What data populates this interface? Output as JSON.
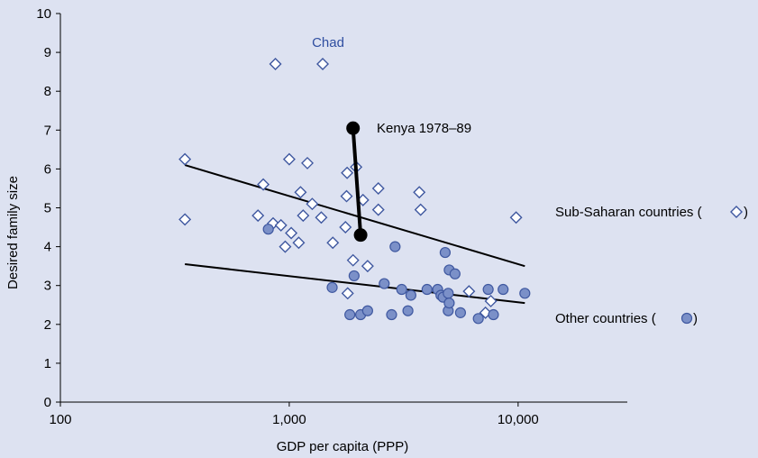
{
  "chart_data": {
    "type": "scatter",
    "xscale": "log",
    "xlim": [
      100,
      30000
    ],
    "ylim": [
      0,
      10
    ],
    "xlabel": "GDP per capita (PPP)",
    "ylabel": "Desired family size",
    "xticks": [
      {
        "value": 100,
        "label": "100"
      },
      {
        "value": 1000,
        "label": "1,000"
      },
      {
        "value": 10000,
        "label": "10,000"
      }
    ],
    "yticks": [
      0,
      1,
      2,
      3,
      4,
      5,
      6,
      7,
      8,
      9,
      10
    ],
    "grid": false,
    "series": [
      {
        "name": "Sub-Saharan countries",
        "marker": "diamond",
        "points": [
          [
            350,
            6.25
          ],
          [
            350,
            4.7
          ],
          [
            730,
            4.8
          ],
          [
            770,
            5.6
          ],
          [
            850,
            4.6
          ],
          [
            870,
            8.7
          ],
          [
            920,
            4.55
          ],
          [
            960,
            4.0
          ],
          [
            1000,
            6.25
          ],
          [
            1020,
            4.35
          ],
          [
            1100,
            4.1
          ],
          [
            1120,
            5.4
          ],
          [
            1150,
            4.8
          ],
          [
            1200,
            6.15
          ],
          [
            1260,
            5.1
          ],
          [
            1380,
            4.75
          ],
          [
            1400,
            8.7
          ],
          [
            1550,
            4.1
          ],
          [
            1760,
            4.5
          ],
          [
            1780,
            5.3
          ],
          [
            1790,
            5.9
          ],
          [
            1800,
            2.8
          ],
          [
            1900,
            3.65
          ],
          [
            1960,
            6.05
          ],
          [
            2100,
            5.2
          ],
          [
            2200,
            3.5
          ],
          [
            2450,
            5.5
          ],
          [
            2450,
            4.95
          ],
          [
            3700,
            5.4
          ],
          [
            3750,
            4.95
          ],
          [
            6100,
            2.85
          ],
          [
            7200,
            2.3
          ],
          [
            7600,
            2.6
          ],
          [
            9800,
            4.75
          ]
        ]
      },
      {
        "name": "Other countries",
        "marker": "circle",
        "points": [
          [
            810,
            4.45
          ],
          [
            1540,
            2.95
          ],
          [
            1840,
            2.25
          ],
          [
            1920,
            3.25
          ],
          [
            2050,
            2.25
          ],
          [
            2200,
            2.35
          ],
          [
            2600,
            3.05
          ],
          [
            2800,
            2.25
          ],
          [
            2900,
            4.0
          ],
          [
            3100,
            2.9
          ],
          [
            3300,
            2.35
          ],
          [
            3400,
            2.75
          ],
          [
            4000,
            2.9
          ],
          [
            4450,
            2.9
          ],
          [
            4600,
            2.75
          ],
          [
            4700,
            2.7
          ],
          [
            4800,
            3.85
          ],
          [
            4950,
            2.8
          ],
          [
            4950,
            2.35
          ],
          [
            5000,
            3.4
          ],
          [
            5000,
            2.55
          ],
          [
            5300,
            3.3
          ],
          [
            5600,
            2.3
          ],
          [
            6700,
            2.15
          ],
          [
            7400,
            2.9
          ],
          [
            7800,
            2.25
          ],
          [
            8600,
            2.9
          ],
          [
            10700,
            2.8
          ]
        ]
      }
    ],
    "trend_lines": [
      {
        "name": "Sub-Saharan countries",
        "from": [
          350,
          6.1
        ],
        "to": [
          10700,
          3.5
        ]
      },
      {
        "name": "Other countries",
        "from": [
          350,
          3.55
        ],
        "to": [
          10700,
          2.55
        ]
      }
    ],
    "path": {
      "label": "Kenya 1978–89",
      "points": [
        [
          1900,
          7.05
        ],
        [
          2050,
          4.3
        ]
      ]
    },
    "annotations": {
      "chad": {
        "text": "Chad",
        "color": "#2f4ea0"
      },
      "kenya": "Kenya 1978–89",
      "legend_ssa": "Sub-Saharan countries (",
      "legend_ssa_end": ")",
      "legend_other": "Other countries (",
      "legend_other_end": ")"
    },
    "colors": {
      "background": "#dde2f1",
      "circle_fill": "#7b90c8",
      "circle_stroke": "#3f58a0",
      "diamond_fill": "#ffffff",
      "diamond_stroke": "#3f58a0",
      "line": "#000000"
    }
  }
}
